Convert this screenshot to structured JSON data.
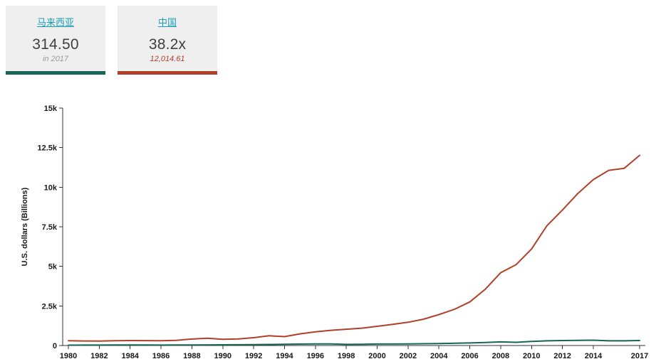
{
  "colors": {
    "malaysia_accent": "#176655",
    "china_accent": "#b0402a",
    "link": "#1d9db4",
    "card_bg": "#efefef",
    "axis": "#333333"
  },
  "cards": [
    {
      "label": "马来西亚",
      "value": "314.50",
      "subvalue": "in 2017",
      "accent": "#176655",
      "sub_color": "#9a9a9a"
    },
    {
      "label": "中国",
      "value": "38.2x",
      "subvalue": "12,014.61",
      "accent": "#b0402a",
      "sub_color": "#b0402a"
    }
  ],
  "chart_data": {
    "type": "line",
    "title": "",
    "xlabel": "",
    "ylabel": "U.S. dollars (Billions)",
    "ylim": [
      0,
      15000
    ],
    "grid": false,
    "legend_position": "top-left-cards",
    "yticks": [
      {
        "value": 0,
        "label": "0"
      },
      {
        "value": 2500,
        "label": "2.5k"
      },
      {
        "value": 5000,
        "label": "5k"
      },
      {
        "value": 7500,
        "label": "7.5k"
      },
      {
        "value": 10000,
        "label": "10k"
      },
      {
        "value": 12500,
        "label": "12.5k"
      },
      {
        "value": 15000,
        "label": "15k"
      }
    ],
    "xticks": [
      1980,
      1982,
      1984,
      1986,
      1988,
      1990,
      1992,
      1994,
      1996,
      1998,
      2000,
      2002,
      2004,
      2006,
      2008,
      2010,
      2012,
      2014,
      2017
    ],
    "x": [
      1980,
      1981,
      1982,
      1983,
      1984,
      1985,
      1986,
      1987,
      1988,
      1989,
      1990,
      1991,
      1992,
      1993,
      1994,
      1995,
      1996,
      1997,
      1998,
      1999,
      2000,
      2001,
      2002,
      2003,
      2004,
      2005,
      2006,
      2007,
      2008,
      2009,
      2010,
      2011,
      2012,
      2013,
      2014,
      2015,
      2016,
      2017
    ],
    "series": [
      {
        "name": "马来西亚",
        "color": "#176655",
        "values": [
          24.5,
          25.0,
          26.8,
          30.4,
          33.9,
          31.2,
          27.7,
          32.1,
          35.3,
          38.8,
          44.0,
          49.1,
          59.2,
          66.9,
          74.5,
          88.8,
          100.9,
          100.2,
          72.2,
          79.1,
          93.8,
          92.8,
          100.8,
          110.2,
          124.7,
          143.5,
          162.7,
          193.5,
          230.8,
          202.3,
          255.0,
          298.0,
          314.4,
          323.3,
          338.1,
          296.4,
          296.5,
          314.5
        ]
      },
      {
        "name": "中国",
        "color": "#b0402a",
        "values": [
          303.4,
          288.7,
          284.6,
          305.4,
          314.2,
          309.8,
          300.8,
          327.1,
          407.2,
          456.3,
          394.6,
          413.2,
          493.1,
          613.2,
          559.2,
          734.5,
          863.7,
          961.6,
          1029.0,
          1094.0,
          1211.3,
          1339.4,
          1470.6,
          1660.3,
          1955.3,
          2286.0,
          2752.1,
          3552.2,
          4598.2,
          5110.0,
          6101.0,
          7573.0,
          8561.0,
          9607.0,
          10482.0,
          11065.0,
          11191.0,
          12014.61
        ]
      }
    ]
  }
}
